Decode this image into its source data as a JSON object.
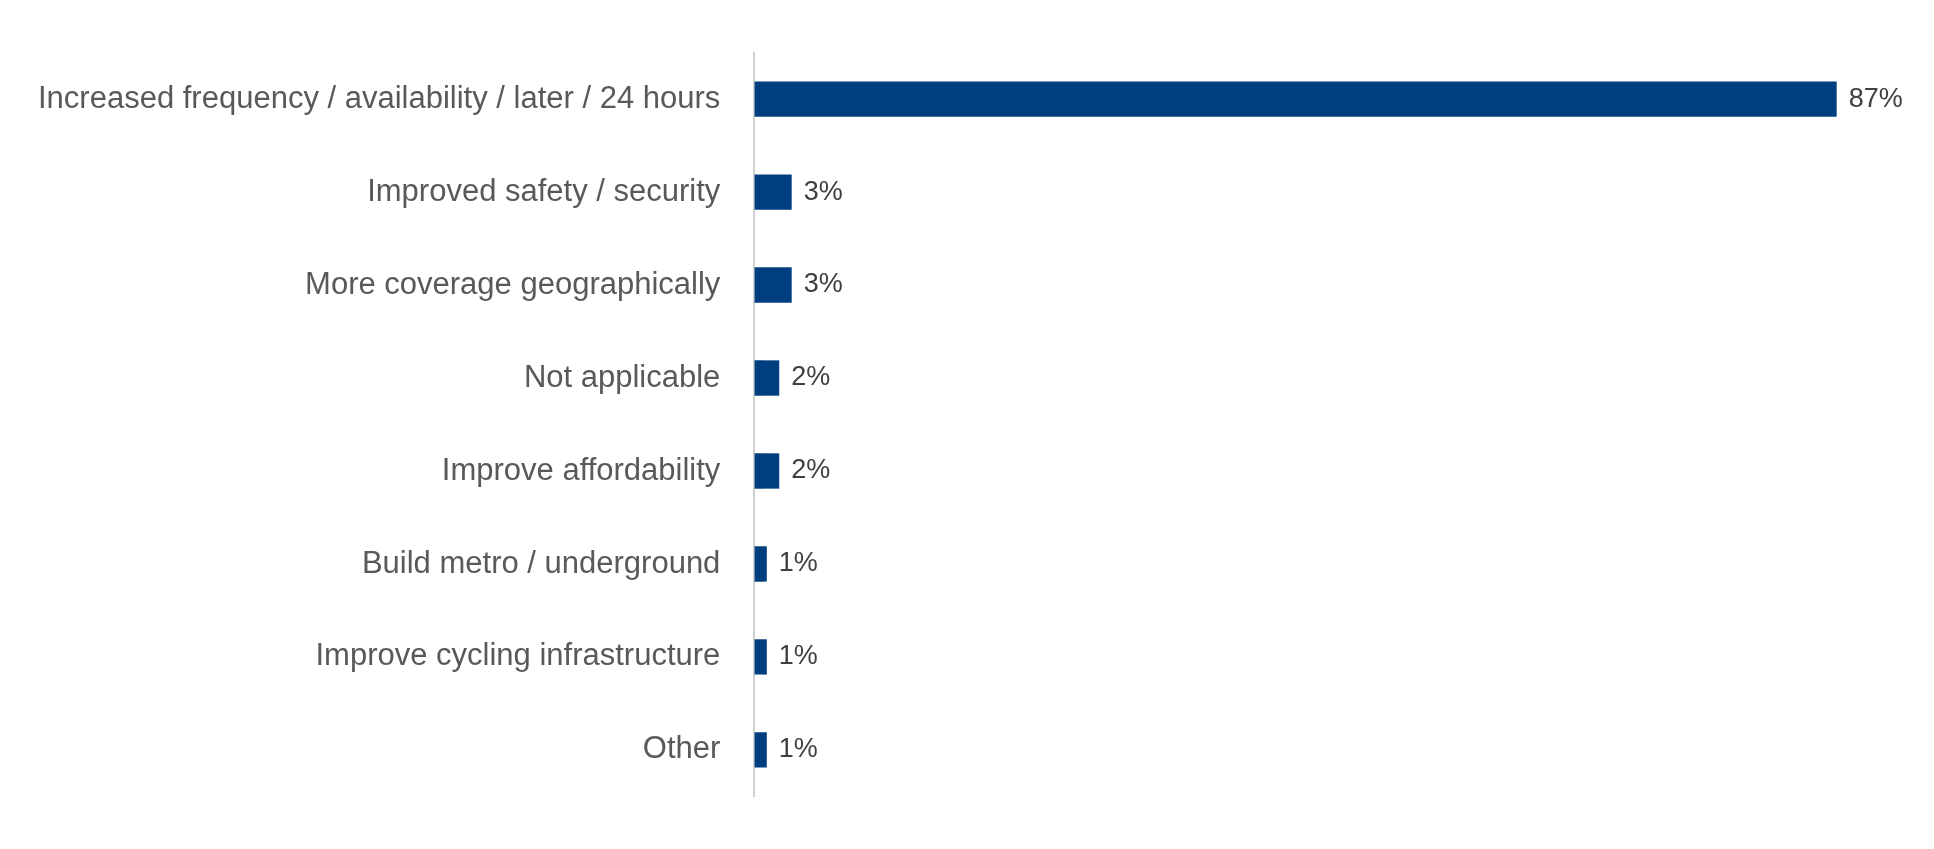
{
  "chart_data": {
    "type": "bar",
    "orientation": "horizontal",
    "categories": [
      "Increased frequency / availability / later / 24 hours",
      "Improved safety / security",
      "More coverage geographically",
      "Not applicable",
      "Improve affordability",
      "Build metro / underground",
      "Improve cycling infrastructure",
      "Other"
    ],
    "values": [
      87,
      3,
      3,
      2,
      2,
      1,
      1,
      1
    ],
    "value_labels": [
      "87%",
      "3%",
      "3%",
      "2%",
      "2%",
      "1%",
      "1%",
      "1%"
    ],
    "color": "#003f7f",
    "grid": false,
    "legend": false
  }
}
